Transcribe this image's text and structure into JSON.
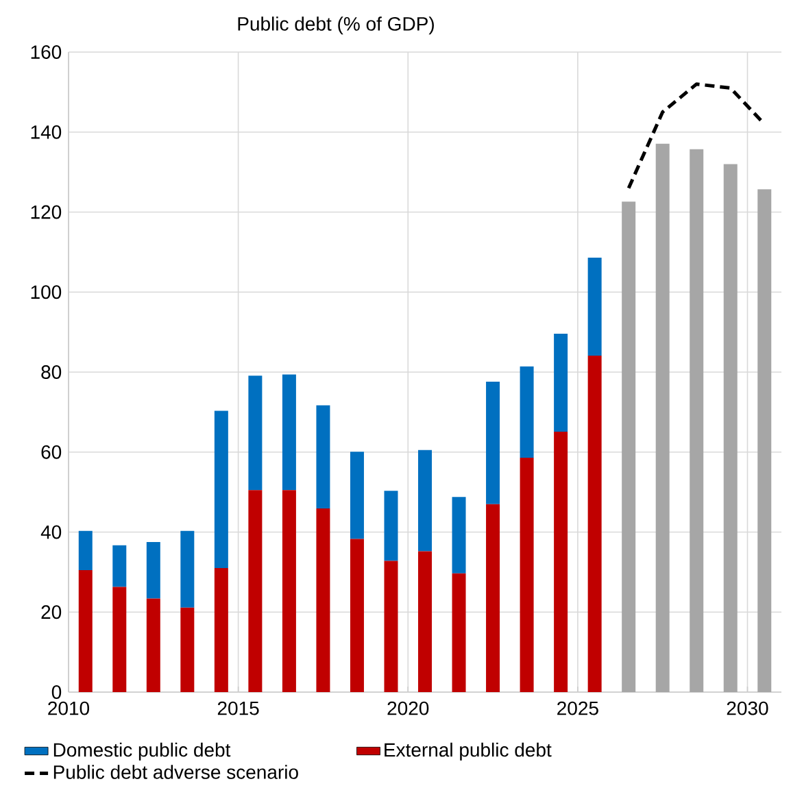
{
  "chart_data": {
    "type": "bar",
    "title": "Public debt (% of GDP)",
    "stacked": true,
    "x": [
      2010.5,
      2011.5,
      2012.5,
      2013.5,
      2014.5,
      2015.5,
      2016.5,
      2017.5,
      2018.5,
      2019.5,
      2020.5,
      2021.5,
      2022.5,
      2023.5,
      2024.5,
      2025.5,
      2026.5,
      2027.5,
      2028.5,
      2029.5,
      2030.5
    ],
    "series": [
      {
        "name": "External public debt",
        "color": "#c00000",
        "values": [
          30.5,
          26.3,
          23.4,
          21.1,
          31.0,
          50.5,
          50.5,
          45.9,
          38.3,
          32.8,
          35.2,
          29.7,
          47.0,
          58.6,
          65.1,
          84.1,
          null,
          null,
          null,
          null,
          null
        ]
      },
      {
        "name": "Domestic public debt",
        "color": "#0070c0",
        "values": [
          9.8,
          10.4,
          14.1,
          19.2,
          39.3,
          28.6,
          28.9,
          25.8,
          21.8,
          17.5,
          25.3,
          19.1,
          30.6,
          22.8,
          24.5,
          24.5,
          null,
          null,
          null,
          null,
          null
        ]
      },
      {
        "color": "#a6a6a6",
        "values": [
          null,
          null,
          null,
          null,
          null,
          null,
          null,
          null,
          null,
          null,
          null,
          null,
          null,
          null,
          null,
          null,
          122.6,
          137.1,
          135.7,
          132.0,
          125.7
        ]
      },
      {
        "name": "Public debt adverse scenario",
        "type": "line",
        "line_style": "dashed",
        "color": "#000000",
        "x": [
          2026.5,
          2027.5,
          2028.5,
          2029.5,
          2030.5
        ],
        "values": [
          126,
          145,
          152,
          151,
          142
        ]
      }
    ],
    "xlim": [
      2010,
      2031
    ],
    "ylim": [
      0,
      160
    ],
    "xticks": [
      2010,
      2015,
      2020,
      2025,
      2030
    ],
    "yticks": [
      0,
      20,
      40,
      60,
      80,
      100,
      120,
      140,
      160
    ],
    "grid": true,
    "legend": "bottom"
  }
}
